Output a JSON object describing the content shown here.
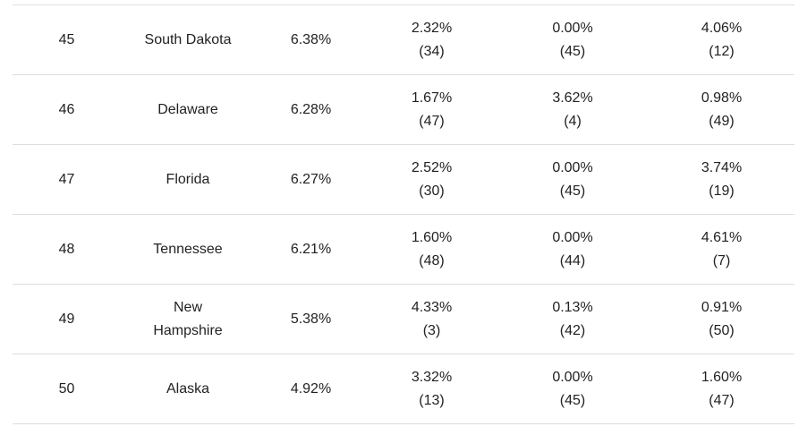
{
  "table": {
    "rows": [
      {
        "rank": "45",
        "state": "South Dakota",
        "total": "6.38%",
        "cells": [
          {
            "value": "2.32%",
            "rank": "(34)"
          },
          {
            "value": "0.00%",
            "rank": "(45)"
          },
          {
            "value": "4.06%",
            "rank": "(12)"
          }
        ]
      },
      {
        "rank": "46",
        "state": "Delaware",
        "total": "6.28%",
        "cells": [
          {
            "value": "1.67%",
            "rank": "(47)"
          },
          {
            "value": "3.62%",
            "rank": "(4)"
          },
          {
            "value": "0.98%",
            "rank": "(49)"
          }
        ]
      },
      {
        "rank": "47",
        "state": "Florida",
        "total": "6.27%",
        "cells": [
          {
            "value": "2.52%",
            "rank": "(30)"
          },
          {
            "value": "0.00%",
            "rank": "(45)"
          },
          {
            "value": "3.74%",
            "rank": "(19)"
          }
        ]
      },
      {
        "rank": "48",
        "state": "Tennessee",
        "total": "6.21%",
        "cells": [
          {
            "value": "1.60%",
            "rank": "(48)"
          },
          {
            "value": "0.00%",
            "rank": "(44)"
          },
          {
            "value": "4.61%",
            "rank": "(7)"
          }
        ]
      },
      {
        "rank": "49",
        "state": "New Hampshire",
        "total": "5.38%",
        "cells": [
          {
            "value": "4.33%",
            "rank": "(3)"
          },
          {
            "value": "0.13%",
            "rank": "(42)"
          },
          {
            "value": "0.91%",
            "rank": "(50)"
          }
        ]
      },
      {
        "rank": "50",
        "state": "Alaska",
        "total": "4.92%",
        "cells": [
          {
            "value": "3.32%",
            "rank": "(13)"
          },
          {
            "value": "0.00%",
            "rank": "(45)"
          },
          {
            "value": "1.60%",
            "rank": "(47)"
          }
        ]
      }
    ]
  }
}
